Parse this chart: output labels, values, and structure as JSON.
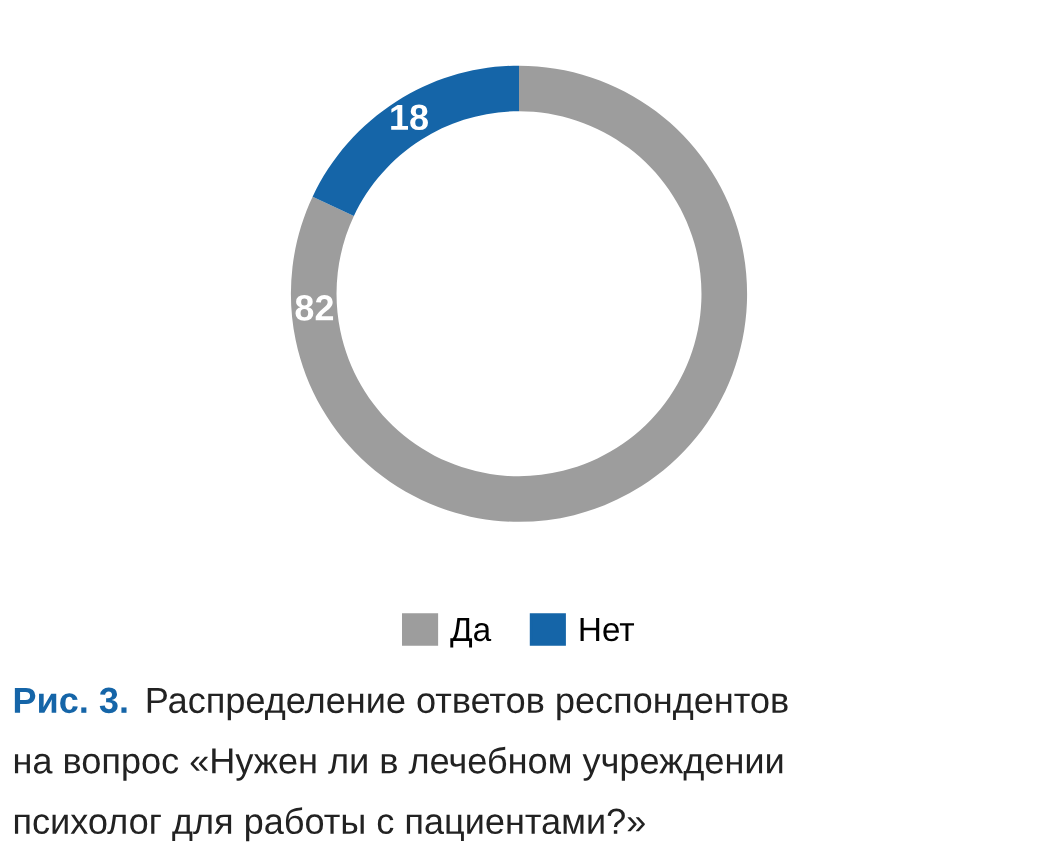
{
  "chart_data": {
    "type": "donut",
    "categories": [
      "Да",
      "Нет"
    ],
    "values": [
      82,
      18
    ],
    "colors": [
      "#9d9d9d",
      "#1565a8"
    ],
    "data_labels": true,
    "legend": "bottom",
    "annotations": [
      "Рис. 3.",
      "Распределение ответов респондентов\nна вопрос «Нужен ли в лечебном учреждении\nпсихолог для работы с пациентами?»"
    ]
  }
}
